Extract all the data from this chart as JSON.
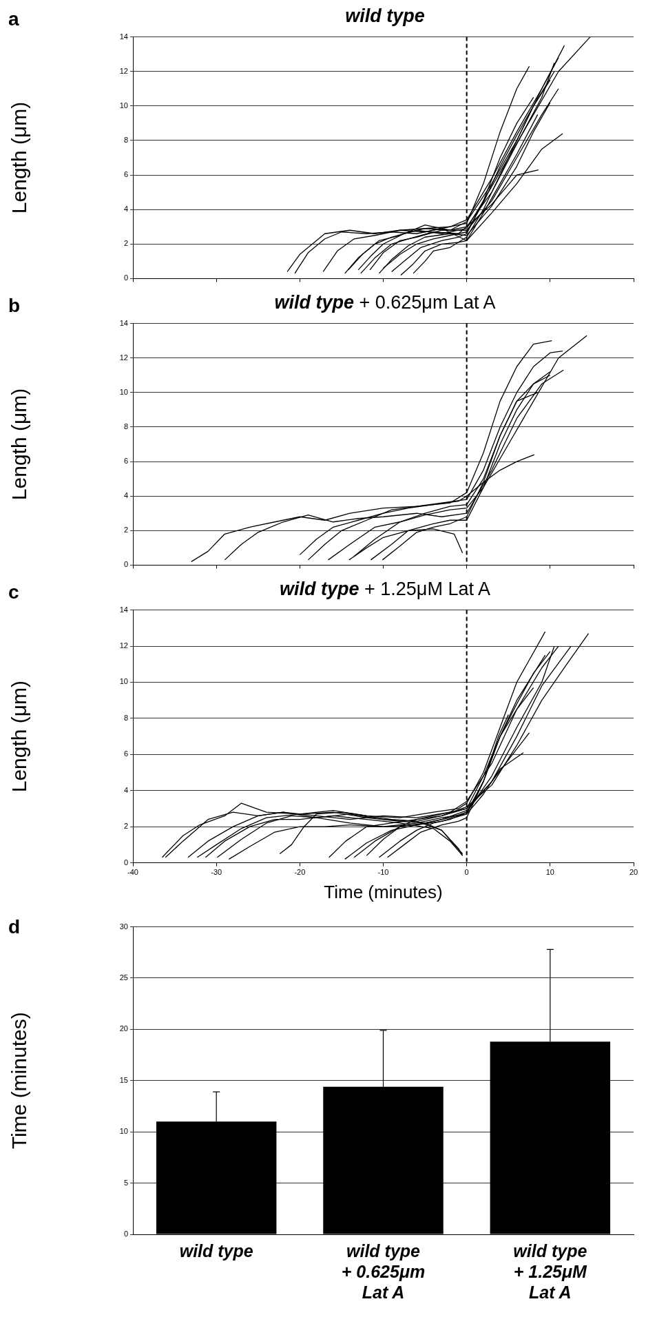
{
  "chart_data": [
    {
      "type": "line",
      "title": "wild type",
      "ylabel": "Length (μm)",
      "annotations": [
        "a"
      ],
      "xlim": [
        -40,
        20
      ],
      "xticks": [
        -40,
        -30,
        -20,
        -10,
        0,
        10,
        20
      ],
      "ylim": [
        0,
        14
      ],
      "yticks": [
        0,
        2,
        4,
        6,
        8,
        10,
        12,
        14
      ],
      "grid": "y",
      "tick_labels": "y",
      "marker": "none",
      "line_style": "solid",
      "ref_lines": [
        {
          "axis": "x",
          "value": 0,
          "line_style": "dashed",
          "color": "#000000"
        }
      ],
      "series": [
        {
          "color": "#000000",
          "x": [
            -21.5,
            -20,
            -18.5,
            -17,
            -14,
            -11,
            -8,
            -5,
            -2,
            0,
            3,
            6,
            8.6
          ],
          "values": [
            0.4,
            1.4,
            2.0,
            2.6,
            2.8,
            2.6,
            2.8,
            2.9,
            2.8,
            3.0,
            4.3,
            6.0,
            6.3
          ]
        },
        {
          "color": "#000000",
          "x": [
            -20.6,
            -19,
            -17,
            -15,
            -12,
            -9,
            -6,
            -3,
            0,
            3,
            6,
            9,
            11.5
          ],
          "values": [
            0.3,
            1.5,
            2.3,
            2.7,
            2.6,
            2.7,
            2.6,
            2.9,
            2.2,
            3.8,
            5.5,
            7.5,
            8.4
          ]
        },
        {
          "color": "#000000",
          "x": [
            -17.2,
            -15.5,
            -13.5,
            -11,
            -8,
            -5,
            -2,
            0,
            2,
            4,
            6,
            7.5
          ],
          "values": [
            0.4,
            1.6,
            2.3,
            2.5,
            2.8,
            2.7,
            3.0,
            3.2,
            5.5,
            8.5,
            11,
            12.3
          ]
        },
        {
          "color": "#000000",
          "x": [
            -14.6,
            -13,
            -11,
            -9,
            -6,
            -3,
            0,
            2,
            5,
            8,
            11,
            14.8
          ],
          "values": [
            0.3,
            1.2,
            2.0,
            2.4,
            2.8,
            2.6,
            2.9,
            4.5,
            7.0,
            9.5,
            12.0,
            14.0
          ]
        },
        {
          "color": "#000000",
          "x": [
            -14.2,
            -12.5,
            -10.5,
            -8,
            -5,
            -2,
            0,
            3,
            6,
            9,
            11.7
          ],
          "values": [
            0.5,
            1.4,
            2.2,
            2.5,
            3.1,
            2.8,
            3.3,
            5.5,
            8.0,
            11.0,
            13.5
          ]
        },
        {
          "color": "#000000",
          "x": [
            -13,
            -11.5,
            -10,
            -7.5,
            -5,
            -2,
            0,
            3,
            6,
            9,
            11
          ],
          "values": [
            0.5,
            1.3,
            2.0,
            2.6,
            2.9,
            3.0,
            3.4,
            5.8,
            8.5,
            11.0,
            12.8
          ]
        },
        {
          "color": "#000000",
          "x": [
            -12.7,
            -11,
            -9,
            -7,
            -4,
            -1,
            0,
            3,
            6,
            9,
            10.5
          ],
          "values": [
            0.3,
            1.2,
            2.0,
            2.3,
            2.7,
            2.6,
            3.0,
            5.0,
            7.8,
            10.5,
            12.5
          ]
        },
        {
          "color": "#000000",
          "x": [
            -11.6,
            -10,
            -8,
            -6,
            -3,
            0,
            3,
            6,
            9,
            11
          ],
          "values": [
            0.5,
            1.5,
            2.2,
            2.4,
            2.8,
            2.8,
            4.5,
            7.0,
            9.5,
            11.0
          ]
        },
        {
          "color": "#000000",
          "x": [
            -10.5,
            -9,
            -7,
            -5,
            -2,
            0,
            3,
            6,
            8,
            10
          ],
          "values": [
            0.3,
            1.1,
            1.9,
            2.4,
            2.6,
            2.5,
            4.2,
            6.5,
            8.5,
            10.2
          ]
        },
        {
          "color": "#000000",
          "x": [
            -10,
            -8,
            -6,
            -4,
            -2,
            0,
            2,
            4,
            6,
            8,
            10
          ],
          "values": [
            0.6,
            1.4,
            2.0,
            2.3,
            2.5,
            2.7,
            4.4,
            6.5,
            8.3,
            10.0,
            11.5
          ]
        },
        {
          "color": "#000000",
          "x": [
            -9,
            -7.5,
            -5.5,
            -3,
            -1,
            0,
            2,
            4,
            6,
            8
          ],
          "values": [
            0.4,
            1.0,
            1.8,
            2.2,
            2.4,
            2.6,
            4.5,
            7.0,
            9.0,
            10.5
          ]
        },
        {
          "color": "#000000",
          "x": [
            -7.9,
            -6.5,
            -5,
            -3,
            -1,
            0,
            2,
            4,
            6,
            8.5
          ],
          "values": [
            0.2,
            0.8,
            1.6,
            2.0,
            2.1,
            2.2,
            3.8,
            5.5,
            7.2,
            9.5
          ]
        },
        {
          "color": "#000000",
          "x": [
            -6.4,
            -5,
            -4,
            -2,
            0,
            2,
            4,
            6,
            8,
            10.5
          ],
          "values": [
            0.3,
            1.0,
            1.6,
            1.8,
            2.4,
            4.0,
            6.0,
            8.0,
            10.0,
            12.0
          ]
        }
      ]
    },
    {
      "type": "line",
      "title": "wild type + 0.625μm Lat A",
      "ylabel": "Length (μm)",
      "annotations": [
        "b"
      ],
      "xlim": [
        -40,
        20
      ],
      "xticks": [
        -40,
        -30,
        -20,
        -10,
        0,
        10,
        20
      ],
      "ylim": [
        0,
        14
      ],
      "yticks": [
        0,
        2,
        4,
        6,
        8,
        10,
        12,
        14
      ],
      "grid": "y",
      "tick_labels": "y",
      "marker": "none",
      "line_style": "solid",
      "ref_lines": [
        {
          "axis": "x",
          "value": 0,
          "line_style": "dashed",
          "color": "#000000"
        }
      ],
      "series": [
        {
          "color": "#000000",
          "x": [
            -33,
            -31,
            -29,
            -26,
            -23,
            -20,
            -17,
            -14,
            -10,
            -6,
            -2,
            0,
            2,
            4,
            6,
            8,
            10.2
          ],
          "values": [
            0.2,
            0.8,
            1.8,
            2.2,
            2.5,
            2.8,
            2.6,
            3.0,
            3.3,
            3.4,
            3.6,
            4.2,
            6.5,
            9.5,
            11.5,
            12.8,
            13.0
          ]
        },
        {
          "color": "#000000",
          "x": [
            -29,
            -27,
            -25,
            -22,
            -19,
            -16,
            -13,
            -10,
            -6,
            -3,
            0,
            3,
            6,
            9,
            11.6
          ],
          "values": [
            0.3,
            1.2,
            1.9,
            2.5,
            2.9,
            2.5,
            2.7,
            2.8,
            3.0,
            2.8,
            3.0,
            5.5,
            8.5,
            10.5,
            11.3
          ]
        },
        {
          "color": "#000000",
          "x": [
            -20,
            -18,
            -16,
            -13,
            -10,
            -7,
            -4,
            -1,
            0,
            2,
            4,
            6,
            8.1
          ],
          "values": [
            0.6,
            1.5,
            2.2,
            2.6,
            3.0,
            3.3,
            3.5,
            3.7,
            4.0,
            4.8,
            5.5,
            6.0,
            6.4
          ]
        },
        {
          "color": "#000000",
          "x": [
            -19,
            -17,
            -15,
            -12,
            -9,
            -6,
            -3,
            0,
            2,
            4,
            6,
            8,
            10,
            11.5
          ],
          "values": [
            0.3,
            1.2,
            2.0,
            2.6,
            3.2,
            3.4,
            3.6,
            3.8,
            5.5,
            8.0,
            10.0,
            11.5,
            12.3,
            12.4
          ]
        },
        {
          "color": "#000000",
          "x": [
            -16.6,
            -14,
            -11,
            -8,
            -5,
            -2,
            0,
            2,
            5,
            8,
            11,
            14.4
          ],
          "values": [
            0.3,
            1.2,
            2.2,
            2.5,
            2.9,
            3.2,
            3.3,
            4.5,
            7.0,
            9.5,
            12.0,
            13.3
          ]
        },
        {
          "color": "#000000",
          "x": [
            -14.1,
            -12,
            -10,
            -7,
            -4,
            -1.5,
            -0.5
          ],
          "values": [
            0.3,
            1.0,
            1.6,
            2.0,
            2.1,
            1.8,
            0.7
          ]
        },
        {
          "color": "#000000",
          "x": [
            -13.5,
            -11,
            -8,
            -5,
            -2,
            0,
            2,
            4,
            6,
            8,
            10
          ],
          "values": [
            0.5,
            1.5,
            2.5,
            3.0,
            3.4,
            3.5,
            5.0,
            7.5,
            9.5,
            10.5,
            11.2
          ]
        },
        {
          "color": "#000000",
          "x": [
            -11.5,
            -9,
            -7,
            -4,
            -2,
            0,
            2,
            4,
            6,
            8,
            10
          ],
          "values": [
            0.3,
            1.2,
            2.0,
            2.4,
            2.6,
            2.6,
            4.5,
            7.0,
            9.0,
            10.5,
            11.0
          ]
        },
        {
          "color": "#000000",
          "x": [
            -10.1,
            -8,
            -6,
            -4,
            -2,
            0,
            2,
            4,
            6,
            8.5
          ],
          "values": [
            0.3,
            1.1,
            1.9,
            2.2,
            2.4,
            2.8,
            4.8,
            7.5,
            9.5,
            10.0
          ]
        }
      ]
    },
    {
      "type": "line",
      "title": "wild type + 1.25μM Lat A",
      "xlabel": "Time (minutes)",
      "ylabel": "Length (μm)",
      "annotations": [
        "c"
      ],
      "xlim": [
        -40,
        20
      ],
      "xticks": [
        -40,
        -30,
        -20,
        -10,
        0,
        10,
        20
      ],
      "ylim": [
        0,
        14
      ],
      "yticks": [
        0,
        2,
        4,
        6,
        8,
        10,
        12,
        14
      ],
      "grid": "y",
      "marker": "none",
      "line_style": "solid",
      "ref_lines": [
        {
          "axis": "x",
          "value": 0,
          "line_style": "dashed",
          "color": "#000000"
        }
      ],
      "series": [
        {
          "color": "#000000",
          "x": [
            -36.5,
            -34,
            -32,
            -29,
            -27,
            -24,
            -20,
            -16,
            -12,
            -8,
            -4,
            -1,
            0,
            2,
            4,
            6,
            9.4
          ],
          "values": [
            0.3,
            1.5,
            2.1,
            2.6,
            3.3,
            2.8,
            2.7,
            2.9,
            2.6,
            2.5,
            2.8,
            3.0,
            3.3,
            5.0,
            7.5,
            10.0,
            12.8
          ]
        },
        {
          "color": "#000000",
          "x": [
            -36.1,
            -34,
            -31,
            -28,
            -25,
            -22,
            -18,
            -14,
            -10,
            -6,
            -3,
            0,
            3,
            6,
            9,
            12,
            14.6
          ],
          "values": [
            0.3,
            1.2,
            2.4,
            2.8,
            2.6,
            2.8,
            2.5,
            2.7,
            2.4,
            2.3,
            2.6,
            3.1,
            4.3,
            6.5,
            9.0,
            11.0,
            12.7
          ]
        },
        {
          "color": "#000000",
          "x": [
            -33.4,
            -31,
            -28,
            -25,
            -22,
            -18,
            -14,
            -10,
            -6,
            -2,
            0,
            3,
            6,
            7.5
          ],
          "values": [
            0.3,
            1.2,
            2.0,
            2.6,
            2.8,
            2.6,
            2.4,
            2.6,
            2.5,
            2.8,
            3.0,
            4.5,
            6.3,
            7.2
          ]
        },
        {
          "color": "#000000",
          "x": [
            -32.3,
            -30,
            -27,
            -24,
            -20,
            -16,
            -12,
            -8,
            -5,
            -2,
            0,
            3,
            6,
            9,
            10.5
          ],
          "values": [
            0.3,
            1.0,
            1.9,
            2.5,
            2.7,
            2.8,
            2.5,
            2.3,
            2.2,
            2.5,
            2.8,
            4.8,
            7.5,
            10.0,
            12.0
          ]
        },
        {
          "color": "#000000",
          "x": [
            -31.3,
            -29,
            -26,
            -23,
            -20,
            -16,
            -12,
            -8,
            -4,
            -2,
            -0.5
          ],
          "values": [
            0.3,
            1.2,
            2.0,
            2.4,
            2.4,
            2.6,
            2.4,
            2.2,
            1.9,
            1.2,
            0.4
          ]
        },
        {
          "color": "#000000",
          "x": [
            -29.9,
            -27,
            -24,
            -21,
            -18,
            -14,
            -10,
            -6,
            -3,
            0,
            3,
            6,
            9,
            12.5
          ],
          "values": [
            0.3,
            1.3,
            2.2,
            2.6,
            2.5,
            2.2,
            2.0,
            2.1,
            2.4,
            2.9,
            4.5,
            7.0,
            9.8,
            12.0
          ]
        },
        {
          "color": "#000000",
          "x": [
            -28.5,
            -26,
            -23,
            -20,
            -17,
            -14,
            -10,
            -6,
            -3,
            0,
            2,
            4,
            6.8
          ],
          "values": [
            0.2,
            0.9,
            1.7,
            2.0,
            2.0,
            2.1,
            2.0,
            2.2,
            2.5,
            2.7,
            3.8,
            5.2,
            6.1
          ]
        },
        {
          "color": "#000000",
          "x": [
            -22.4,
            -21,
            -19.5,
            -18,
            -15,
            -12,
            -9,
            -6,
            -3,
            -1.5,
            -0.5
          ],
          "values": [
            0.5,
            1.0,
            2.0,
            2.7,
            2.8,
            2.6,
            2.4,
            2.3,
            1.8,
            1.0,
            0.5
          ]
        },
        {
          "color": "#000000",
          "x": [
            -16.5,
            -14.5,
            -12,
            -9,
            -6,
            -3,
            0,
            2,
            4,
            6,
            8
          ],
          "values": [
            0.3,
            1.2,
            2.0,
            2.2,
            2.4,
            2.6,
            3.0,
            4.8,
            7.0,
            8.5,
            9.7
          ]
        },
        {
          "color": "#000000",
          "x": [
            -14.6,
            -12,
            -9,
            -6,
            -3,
            0,
            2,
            4,
            6,
            9.4
          ],
          "values": [
            0.2,
            1.1,
            1.8,
            2.1,
            2.3,
            2.7,
            4.5,
            7.0,
            9.0,
            11.5
          ]
        },
        {
          "color": "#000000",
          "x": [
            -13.5,
            -11,
            -8,
            -5,
            -3,
            -1,
            -0.5
          ],
          "values": [
            0.3,
            1.2,
            2.0,
            2.2,
            1.8,
            0.8,
            0.4
          ]
        },
        {
          "color": "#000000",
          "x": [
            -12,
            -10,
            -8,
            -6,
            -4,
            -2,
            0,
            3,
            6,
            9,
            11
          ],
          "values": [
            0.4,
            1.3,
            2.0,
            2.4,
            2.6,
            2.8,
            3.4,
            5.5,
            8.5,
            10.8,
            12.0
          ]
        },
        {
          "color": "#000000",
          "x": [
            -10.5,
            -8,
            -6,
            -4,
            -2,
            0,
            2,
            4,
            6,
            8,
            10
          ],
          "values": [
            0.3,
            1.2,
            1.8,
            2.2,
            2.4,
            2.8,
            4.5,
            7.0,
            8.8,
            10.5,
            11.7
          ]
        },
        {
          "color": "#000000",
          "x": [
            -9.5,
            -7.5,
            -5.5,
            -3,
            -1,
            0,
            2,
            3.8,
            5
          ],
          "values": [
            0.3,
            1.0,
            1.7,
            2.1,
            2.3,
            2.5,
            4.5,
            7.0,
            8.2
          ]
        }
      ]
    },
    {
      "type": "bar",
      "ylabel": "Time (minutes)",
      "annotations": [
        "d"
      ],
      "categories": [
        "wild type",
        "wild type\n+ 0.625μm\nLat A",
        "wild type\n+ 1.25μM\nLat A"
      ],
      "values": [
        11.0,
        14.4,
        18.8
      ],
      "errors": [
        [
          11.0,
          13.9
        ],
        [
          14.4,
          19.9
        ],
        [
          18.8,
          27.8
        ]
      ],
      "color": "#000000",
      "ylim": [
        0,
        30
      ],
      "yticks": [
        0,
        5,
        10,
        15,
        20,
        25,
        30
      ],
      "grid": "y"
    }
  ]
}
